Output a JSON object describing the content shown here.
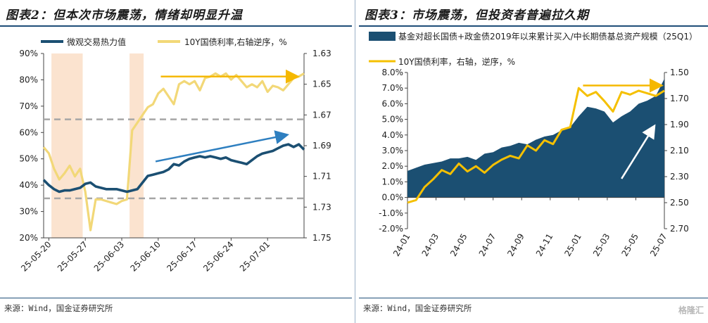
{
  "figure1": {
    "title": "图表2：但本次市场震荡，情绪却明显升温",
    "source": "来源：Wind，国金证券研究所",
    "colors": {
      "sentiment": "#1b4f72",
      "yield": "#f2d878",
      "shade": "#fbe3cf",
      "arrow_yellow": "#f5b800",
      "arrow_blue": "#2e7fc0",
      "dashed": "#a6a6a6"
    },
    "chart_data": {
      "type": "line",
      "x_ticks": [
        "25-05-20",
        "25-05-27",
        "25-06-03",
        "25-06-10",
        "25-06-17",
        "25-06-24",
        "25-07-01"
      ],
      "left_axis": {
        "ticks": [
          "90%",
          "80%",
          "70%",
          "60%",
          "50%",
          "40%",
          "30%",
          "20%"
        ],
        "ylim": [
          0.2,
          0.9
        ]
      },
      "right_axis": {
        "ticks": [
          "1.63",
          "1.65",
          "1.67",
          "1.69",
          "1.71",
          "1.73",
          "1.75"
        ],
        "ylim": [
          1.63,
          1.75
        ],
        "reversed": true
      },
      "x_range": [
        0,
        50
      ],
      "shaded_ranges": [
        [
          1.5,
          7.5
        ],
        [
          16.5,
          19.2
        ]
      ],
      "dashed_levels": [
        0.65,
        0.35
      ],
      "series": [
        {
          "name": "微观交易热力值",
          "axis": "left",
          "x": [
            0,
            1,
            2,
            3,
            4,
            5,
            6,
            7,
            8,
            9,
            10,
            11,
            12,
            13,
            14,
            15,
            16,
            17,
            18,
            19,
            20,
            21,
            22,
            23,
            24,
            25,
            26,
            27,
            28,
            29,
            30,
            31,
            32,
            33,
            34,
            35,
            36,
            37,
            38,
            39,
            40,
            41,
            42,
            43,
            44,
            45,
            46,
            47,
            48,
            49,
            50
          ],
          "values": [
            0.42,
            0.4,
            0.385,
            0.375,
            0.38,
            0.38,
            0.385,
            0.39,
            0.405,
            0.41,
            0.395,
            0.39,
            0.385,
            0.385,
            0.385,
            0.38,
            0.375,
            0.38,
            0.385,
            0.41,
            0.435,
            0.44,
            0.445,
            0.45,
            0.46,
            0.48,
            0.475,
            0.49,
            0.5,
            0.505,
            0.51,
            0.505,
            0.51,
            0.505,
            0.5,
            0.505,
            0.495,
            0.49,
            0.485,
            0.48,
            0.495,
            0.51,
            0.52,
            0.525,
            0.53,
            0.54,
            0.55,
            0.555,
            0.545,
            0.555,
            0.535
          ]
        },
        {
          "name": "10Y国债利率,右轴逆序，%",
          "axis": "right",
          "x": [
            0,
            1,
            2,
            3,
            4,
            5,
            6,
            7,
            8,
            9,
            10,
            11,
            12,
            13,
            14,
            15,
            16,
            17,
            18,
            19,
            20,
            21,
            22,
            23,
            24,
            25,
            26,
            27,
            28,
            29,
            30,
            31,
            32,
            33,
            34,
            35,
            36,
            37,
            38,
            39,
            40,
            41,
            42,
            43,
            44,
            45,
            46,
            47,
            48,
            49,
            50
          ],
          "values": [
            1.691,
            1.695,
            1.705,
            1.712,
            1.708,
            1.703,
            1.71,
            1.705,
            1.72,
            1.745,
            1.725,
            1.725,
            1.726,
            1.727,
            1.728,
            1.726,
            1.725,
            1.68,
            1.675,
            1.67,
            1.665,
            1.663,
            1.656,
            1.653,
            1.658,
            1.663,
            1.65,
            1.648,
            1.65,
            1.648,
            1.654,
            1.646,
            1.645,
            1.643,
            1.645,
            1.643,
            1.647,
            1.644,
            1.648,
            1.652,
            1.65,
            1.652,
            1.648,
            1.655,
            1.651,
            1.652,
            1.654,
            1.65,
            1.646,
            1.645,
            1.643
          ]
        }
      ]
    }
  },
  "figure2": {
    "title": "图表3：市场震荡，但投资者普遍拉久期",
    "source": "来源：Wind，国金证券研究所",
    "colors": {
      "area": "#1b4f72",
      "yield": "#f5c000",
      "arrow_yellow": "#f5b800",
      "arrow_white": "#ffffff"
    },
    "chart_data": {
      "type": "area",
      "x_ticks": [
        "24-01",
        "24-03",
        "24-05",
        "24-07",
        "24-09",
        "24-11",
        "25-01",
        "25-03",
        "25-05",
        "25-07"
      ],
      "left_axis": {
        "ticks": [
          "8.0%",
          "7.0%",
          "6.0%",
          "5.0%",
          "4.0%",
          "3.0%",
          "2.0%",
          "1.0%",
          "0.0%",
          "-1.0%",
          "-2.0%"
        ],
        "ylim": [
          -0.02,
          0.08
        ]
      },
      "right_axis": {
        "ticks": [
          "1.50",
          "1.70",
          "1.90",
          "2.10",
          "2.30",
          "2.50",
          "2.70"
        ],
        "ylim": [
          1.5,
          2.7
        ],
        "reversed": true
      },
      "x_range": [
        0,
        60
      ],
      "series": [
        {
          "name": "基金对超长国债+政金债2019年以来累计买入/中长期债基总资产规模（25Q1）",
          "type": "area",
          "axis": "left",
          "x": [
            0,
            2,
            4,
            6,
            8,
            10,
            12,
            14,
            16,
            18,
            20,
            22,
            24,
            26,
            28,
            30,
            32,
            34,
            36,
            38,
            40,
            42,
            44,
            46,
            48,
            50,
            52,
            54,
            56,
            58,
            60
          ],
          "values": [
            0.017,
            0.019,
            0.021,
            0.022,
            0.023,
            0.025,
            0.025,
            0.026,
            0.024,
            0.028,
            0.029,
            0.032,
            0.033,
            0.035,
            0.034,
            0.037,
            0.039,
            0.04,
            0.043,
            0.045,
            0.052,
            0.058,
            0.057,
            0.055,
            0.048,
            0.052,
            0.055,
            0.06,
            0.062,
            0.065,
            0.076
          ]
        },
        {
          "name": "10Y国债利率，右轴，逆序，%",
          "type": "line",
          "axis": "right",
          "x": [
            0,
            2,
            4,
            6,
            8,
            10,
            12,
            14,
            16,
            18,
            20,
            22,
            24,
            26,
            28,
            30,
            32,
            34,
            36,
            38,
            40,
            42,
            44,
            46,
            48,
            50,
            52,
            54,
            56,
            58,
            60
          ],
          "values": [
            2.5,
            2.48,
            2.38,
            2.32,
            2.25,
            2.28,
            2.2,
            2.26,
            2.22,
            2.27,
            2.21,
            2.17,
            2.14,
            2.16,
            2.06,
            2.1,
            2.02,
            2.05,
            1.94,
            1.92,
            1.62,
            1.68,
            1.65,
            1.72,
            1.8,
            1.65,
            1.67,
            1.64,
            1.66,
            1.68,
            1.64
          ]
        }
      ]
    }
  },
  "watermark": "格隆汇"
}
